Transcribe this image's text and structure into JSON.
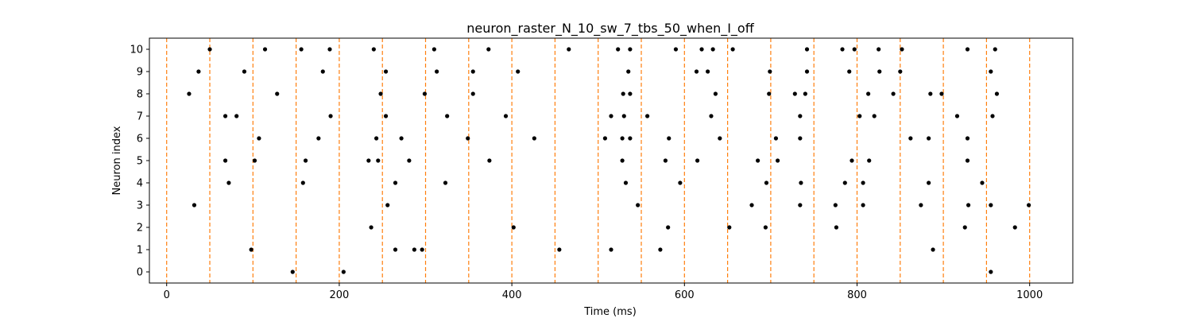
{
  "chart_data": {
    "type": "scatter",
    "title": "neuron_raster_N_10_sw_7_tbs_50_when_I_off",
    "xlabel": "Time (ms)",
    "ylabel": "Neuron index",
    "xlim": [
      -20,
      1050
    ],
    "ylim": [
      -0.5,
      10.5
    ],
    "x_ticks": [
      0,
      200,
      400,
      600,
      800,
      1000
    ],
    "y_ticks": [
      0,
      1,
      2,
      3,
      4,
      5,
      6,
      7,
      8,
      9,
      10
    ],
    "grid": false,
    "marker_color": "#000000",
    "vline_color": "#ff7f0e",
    "vlines": [
      0,
      50,
      100,
      150,
      200,
      250,
      300,
      350,
      400,
      450,
      500,
      550,
      600,
      650,
      700,
      750,
      800,
      850,
      900,
      950,
      1000
    ],
    "spikes": [
      {
        "neuron": 10,
        "times": [
          50,
          114,
          156,
          189,
          240,
          310,
          373,
          466,
          523,
          537,
          590,
          620,
          633,
          656,
          742,
          783,
          797,
          825,
          852,
          928,
          960
        ]
      },
      {
        "neuron": 9,
        "times": [
          37,
          90,
          181,
          254,
          313,
          355,
          407,
          535,
          614,
          627,
          699,
          742,
          791,
          826,
          850,
          955
        ]
      },
      {
        "neuron": 8,
        "times": [
          26,
          128,
          248,
          299,
          355,
          529,
          537,
          636,
          698,
          728,
          740,
          813,
          842,
          885,
          898,
          962
        ]
      },
      {
        "neuron": 7,
        "times": [
          68,
          81,
          190,
          254,
          325,
          393,
          515,
          530,
          557,
          631,
          734,
          803,
          820,
          916,
          957
        ]
      },
      {
        "neuron": 6,
        "times": [
          107,
          176,
          243,
          272,
          349,
          426,
          508,
          528,
          537,
          582,
          641,
          706,
          734,
          862,
          883,
          928
        ]
      },
      {
        "neuron": 5,
        "times": [
          68,
          102,
          161,
          234,
          245,
          281,
          374,
          528,
          578,
          615,
          685,
          708,
          794,
          814,
          928
        ]
      },
      {
        "neuron": 4,
        "times": [
          72,
          158,
          265,
          323,
          532,
          595,
          695,
          735,
          786,
          807,
          883,
          945
        ]
      },
      {
        "neuron": 3,
        "times": [
          32,
          256,
          546,
          678,
          734,
          775,
          807,
          874,
          929,
          955,
          999
        ]
      },
      {
        "neuron": 2,
        "times": [
          237,
          402,
          581,
          652,
          694,
          776,
          925,
          983
        ]
      },
      {
        "neuron": 1,
        "times": [
          98,
          265,
          287,
          296,
          455,
          515,
          572,
          888
        ]
      },
      {
        "neuron": 0,
        "times": [
          146,
          205,
          955
        ]
      }
    ]
  }
}
